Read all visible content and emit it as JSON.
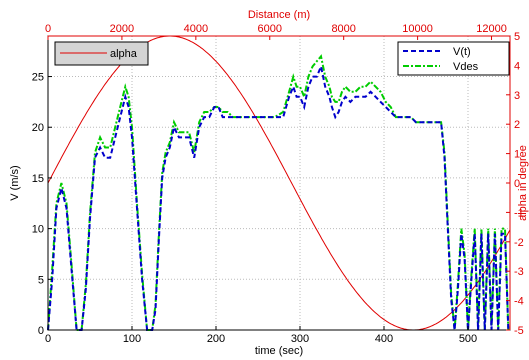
{
  "chart_data": {
    "type": "line",
    "title": "",
    "xlabel": "time (sec)",
    "ylabel": "V (m/s)",
    "x_top_label": "Distance (m)",
    "y_right_label": "alpha in degree",
    "xlim": [
      0,
      550
    ],
    "ylim": [
      0,
      29
    ],
    "x_top_lim": [
      0,
      12500
    ],
    "y_right_lim": [
      -5,
      5
    ],
    "x_ticks": [
      0,
      100,
      200,
      300,
      400,
      500
    ],
    "y_ticks": [
      0,
      5,
      10,
      15,
      20,
      25
    ],
    "x_top_ticks": [
      0,
      2000,
      4000,
      6000,
      8000,
      10000,
      12000
    ],
    "y_right_ticks": [
      -5,
      -4,
      -3,
      -2,
      -1,
      0,
      1,
      2,
      3,
      4,
      5
    ],
    "grid": true,
    "legend_left": {
      "placement": "top-left",
      "entries": [
        "alpha"
      ]
    },
    "legend_right": {
      "placement": "top-right",
      "entries": [
        "V(t)",
        "Vdes"
      ]
    },
    "colors": {
      "alpha": "#e00000",
      "vt": "#0000cc",
      "vdes": "#00cc00",
      "grid": "#bbbbbb",
      "axis_red": "#e00000"
    },
    "series": [
      {
        "name": "V(t)",
        "axis": "left",
        "x": [
          0,
          5,
          10,
          16,
          22,
          28,
          34,
          40,
          45,
          50,
          56,
          62,
          68,
          74,
          80,
          86,
          92,
          96,
          100,
          106,
          112,
          118,
          124,
          128,
          132,
          136,
          140,
          145,
          150,
          156,
          162,
          168,
          174,
          180,
          186,
          192,
          198,
          203,
          208,
          214,
          220,
          226,
          232,
          240,
          250,
          260,
          270,
          280,
          287,
          292,
          296,
          300,
          305,
          310,
          315,
          320,
          325,
          330,
          335,
          338,
          342,
          346,
          350,
          354,
          360,
          366,
          372,
          378,
          384,
          390,
          396,
          402,
          408,
          414,
          420,
          426,
          432,
          438,
          444,
          450,
          456,
          462,
          468,
          472,
          476,
          480,
          484,
          488,
          492,
          496,
          500,
          504,
          508,
          512,
          516,
          520,
          524,
          528,
          532,
          536,
          540,
          544,
          548
        ],
        "values": [
          0,
          5,
          12,
          14,
          12,
          6,
          0,
          0,
          4,
          11,
          17,
          18,
          17,
          17,
          19,
          21,
          23,
          22,
          19,
          12,
          5,
          0,
          0,
          2,
          9,
          15,
          17,
          18,
          20,
          19,
          19,
          19,
          17,
          20,
          21,
          21,
          22,
          22,
          21,
          21,
          21,
          21,
          21,
          21,
          21,
          21,
          21,
          21,
          23,
          24,
          23,
          23,
          22,
          24,
          25,
          25,
          26,
          24,
          23,
          22,
          21,
          21.5,
          22.5,
          23,
          22.5,
          23,
          23,
          23,
          23.5,
          23,
          22.5,
          22,
          21.5,
          21,
          21,
          21,
          21,
          20.5,
          20.5,
          20.5,
          20.5,
          20.5,
          20.5,
          17,
          10,
          3,
          0,
          4,
          9.5,
          7,
          0,
          5,
          9.5,
          0,
          9.5,
          0,
          9.5,
          0,
          9.5,
          0,
          9.5,
          9.5,
          0
        ]
      },
      {
        "name": "Vdes",
        "axis": "left",
        "x": [
          0,
          5,
          10,
          16,
          22,
          28,
          34,
          40,
          45,
          50,
          56,
          62,
          68,
          74,
          80,
          86,
          92,
          96,
          100,
          106,
          112,
          118,
          124,
          128,
          132,
          136,
          140,
          145,
          150,
          156,
          162,
          168,
          174,
          180,
          186,
          192,
          198,
          203,
          208,
          214,
          220,
          226,
          232,
          240,
          250,
          260,
          270,
          280,
          287,
          292,
          296,
          300,
          305,
          310,
          315,
          320,
          325,
          330,
          335,
          338,
          342,
          346,
          350,
          354,
          360,
          366,
          372,
          378,
          384,
          390,
          396,
          402,
          408,
          414,
          420,
          426,
          432,
          438,
          444,
          450,
          456,
          462,
          468,
          472,
          476,
          480,
          484,
          488,
          492,
          496,
          500,
          504,
          508,
          512,
          516,
          520,
          524,
          528,
          532,
          536,
          540,
          544,
          548
        ],
        "values": [
          0,
          6,
          12.5,
          14.5,
          12.5,
          6.5,
          0,
          0,
          4.5,
          11.5,
          17.5,
          19,
          18,
          18,
          20,
          22,
          24,
          23,
          20,
          12.5,
          5.5,
          0,
          0,
          2.5,
          9.5,
          15.5,
          17.5,
          18.5,
          20.5,
          19.5,
          19.5,
          19.5,
          17.5,
          20.5,
          21.5,
          21.5,
          22,
          22,
          21.5,
          21.5,
          21,
          21,
          21,
          21,
          21,
          21,
          21,
          21.5,
          23.5,
          25,
          24,
          24,
          23,
          25,
          26,
          26.5,
          27,
          25,
          24,
          23,
          22.5,
          22.5,
          23.5,
          24,
          23.5,
          23.5,
          24,
          24,
          24.5,
          24,
          23.5,
          22.5,
          22,
          21,
          21,
          21,
          21,
          20.5,
          20.5,
          20.5,
          20.5,
          20.5,
          20.5,
          17.5,
          10.5,
          3.5,
          0,
          4.5,
          10,
          7.5,
          0,
          5.5,
          10,
          0,
          10,
          0,
          10,
          0,
          10,
          0,
          10,
          10,
          0
        ]
      },
      {
        "name": "alpha",
        "axis": "right",
        "function": "sine",
        "amplitude": 5,
        "offset": 0,
        "x_start": 0,
        "x_end": 550,
        "phase_start": 0,
        "value_at_start": 0,
        "peak_at": 150,
        "trough_at": 440,
        "value_at_end": -1.9
      }
    ]
  }
}
